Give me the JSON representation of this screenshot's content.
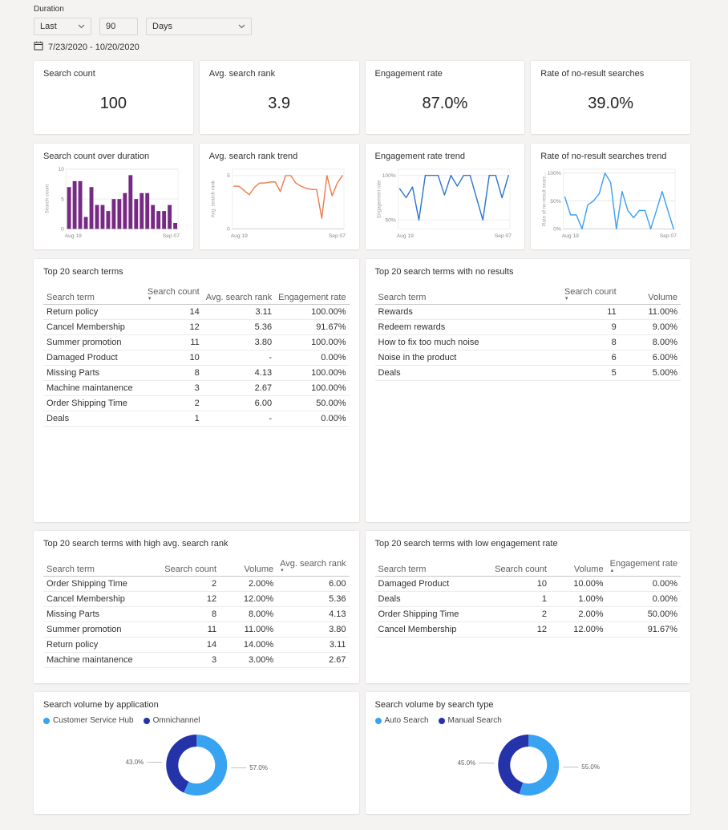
{
  "filter": {
    "label": "Duration",
    "range_type": "Last",
    "range_count": "90",
    "range_unit": "Days",
    "date_range": "7/23/2020 - 10/20/2020"
  },
  "kpis": [
    {
      "title": "Search count",
      "value": "100"
    },
    {
      "title": "Avg. search rank",
      "value": "3.9"
    },
    {
      "title": "Engagement rate",
      "value": "87.0%"
    },
    {
      "title": "Rate of no-result searches",
      "value": "39.0%"
    }
  ],
  "chart_data": [
    {
      "type": "bar",
      "title": "Search count over duration",
      "ylabel": "Search count",
      "x_start": "Aug 19",
      "x_end": "Sep 07",
      "ylim": [
        0,
        10
      ],
      "yticks": [
        {
          "v": 0,
          "label": "0"
        },
        {
          "v": 5,
          "label": "5"
        },
        {
          "v": 10,
          "label": "10"
        }
      ],
      "values": [
        7,
        8,
        8,
        2,
        7,
        4,
        4,
        3,
        5,
        5,
        6,
        9,
        5,
        6,
        6,
        4,
        3,
        3,
        4,
        1
      ],
      "color": "#772a84"
    },
    {
      "type": "line",
      "title": "Avg. search rank trend",
      "ylabel": "Avg. search rank",
      "x_start": "Aug 19",
      "x_end": "Sep 07",
      "ylim": [
        0,
        5.6
      ],
      "yticks": [
        {
          "v": 0,
          "label": "0"
        },
        {
          "v": 5,
          "label": "5"
        }
      ],
      "values": [
        4,
        4,
        3.6,
        3.2,
        3.9,
        4.3,
        4.3,
        4.4,
        4.4,
        3.5,
        5,
        5,
        4.3,
        4,
        3.8,
        3.7,
        3.7,
        1,
        5,
        3.1,
        4.3,
        5
      ],
      "color": "#ed7d4e"
    },
    {
      "type": "line",
      "title": "Engagement rate trend",
      "ylabel": "Engagement rate",
      "x_start": "Aug 19",
      "x_end": "Sep 07",
      "ylim": [
        40,
        107
      ],
      "yticks": [
        {
          "v": 50,
          "label": "50%"
        },
        {
          "v": 100,
          "label": "100%"
        }
      ],
      "values": [
        85,
        75,
        87,
        50,
        100,
        100,
        100,
        78,
        100,
        88,
        100,
        100,
        75,
        50,
        100,
        100,
        75,
        100
      ],
      "color": "#2e75d4"
    },
    {
      "type": "line",
      "title": "Rate of no-result searches trend",
      "ylabel": "Rate of no-result searc...",
      "x_start": "Aug 19",
      "x_end": "Sep 07",
      "ylim": [
        0,
        107
      ],
      "yticks": [
        {
          "v": 0,
          "label": "0%"
        },
        {
          "v": 50,
          "label": "50%"
        },
        {
          "v": 100,
          "label": "100%"
        }
      ],
      "values": [
        57,
        25,
        25,
        0,
        43,
        50,
        63,
        100,
        83,
        0,
        67,
        33,
        20,
        33,
        33,
        0,
        33,
        67,
        33,
        0
      ],
      "color": "#3ea0f2"
    },
    {
      "type": "donut",
      "title": "Search volume by application",
      "legend": [
        {
          "label": "Customer Service Hub",
          "color": "#38a3f1"
        },
        {
          "label": "Omnichannel",
          "color": "#2433aa"
        }
      ],
      "slices": [
        {
          "name": "Customer Service Hub",
          "value": 57,
          "label": "57.0%",
          "color": "#38a3f1"
        },
        {
          "name": "Omnichannel",
          "value": 43,
          "label": "43.0%",
          "color": "#2433aa"
        }
      ]
    },
    {
      "type": "donut",
      "title": "Search volume by search type",
      "legend": [
        {
          "label": "Auto Search",
          "color": "#38a3f1"
        },
        {
          "label": "Manual Search",
          "color": "#2433aa"
        }
      ],
      "slices": [
        {
          "name": "Auto Search",
          "value": 55,
          "label": "55.0%",
          "color": "#38a3f1"
        },
        {
          "name": "Manual Search",
          "value": 45,
          "label": "45.0%",
          "color": "#2433aa"
        }
      ]
    }
  ],
  "tables": [
    {
      "title": "Top 20 search terms",
      "columns": [
        {
          "label": "Search term",
          "align": "left"
        },
        {
          "label": "Search count",
          "align": "right",
          "sort": "desc"
        },
        {
          "label": "Avg. search rank",
          "align": "right"
        },
        {
          "label": "Engagement rate",
          "align": "right"
        }
      ],
      "rows": [
        [
          "Return policy",
          "14",
          "3.11",
          "100.00%"
        ],
        [
          "Cancel Membership",
          "12",
          "5.36",
          "91.67%"
        ],
        [
          "Summer promotion",
          "11",
          "3.80",
          "100.00%"
        ],
        [
          "Damaged Product",
          "10",
          "-",
          "0.00%"
        ],
        [
          "Missing Parts",
          "8",
          "4.13",
          "100.00%"
        ],
        [
          "Machine maintanence",
          "3",
          "2.67",
          "100.00%"
        ],
        [
          "Order Shipping Time",
          "2",
          "6.00",
          "50.00%"
        ],
        [
          "Deals",
          "1",
          "-",
          "0.00%"
        ]
      ]
    },
    {
      "title": "Top 20 search terms with no results",
      "columns": [
        {
          "label": "Search term",
          "align": "left"
        },
        {
          "label": "Search count",
          "align": "right",
          "sort": "desc"
        },
        {
          "label": "Volume",
          "align": "right"
        }
      ],
      "rows": [
        [
          "Rewards",
          "11",
          "11.00%"
        ],
        [
          "Redeem rewards",
          "9",
          "9.00%"
        ],
        [
          "How to fix too much noise",
          "8",
          "8.00%"
        ],
        [
          "Noise in the product",
          "6",
          "6.00%"
        ],
        [
          "Deals",
          "5",
          "5.00%"
        ]
      ]
    },
    {
      "title": "Top 20 search terms with high avg. search rank",
      "columns": [
        {
          "label": "Search term",
          "align": "left"
        },
        {
          "label": "Search count",
          "align": "right"
        },
        {
          "label": "Volume",
          "align": "right"
        },
        {
          "label": "Avg. search rank",
          "align": "right",
          "sort": "desc"
        }
      ],
      "rows": [
        [
          "Order Shipping Time",
          "2",
          "2.00%",
          "6.00"
        ],
        [
          "Cancel Membership",
          "12",
          "12.00%",
          "5.36"
        ],
        [
          "Missing Parts",
          "8",
          "8.00%",
          "4.13"
        ],
        [
          "Summer promotion",
          "11",
          "11.00%",
          "3.80"
        ],
        [
          "Return policy",
          "14",
          "14.00%",
          "3.11"
        ],
        [
          "Machine maintanence",
          "3",
          "3.00%",
          "2.67"
        ]
      ]
    },
    {
      "title": "Top 20 search terms with low engagement rate",
      "columns": [
        {
          "label": "Search term",
          "align": "left"
        },
        {
          "label": "Search count",
          "align": "right"
        },
        {
          "label": "Volume",
          "align": "right"
        },
        {
          "label": "Engagement rate",
          "align": "right",
          "sort": "asc"
        }
      ],
      "rows": [
        [
          "Damaged Product",
          "10",
          "10.00%",
          "0.00%"
        ],
        [
          "Deals",
          "1",
          "1.00%",
          "0.00%"
        ],
        [
          "Order Shipping Time",
          "2",
          "2.00%",
          "50.00%"
        ],
        [
          "Cancel Membership",
          "12",
          "12.00%",
          "91.67%"
        ]
      ]
    }
  ]
}
